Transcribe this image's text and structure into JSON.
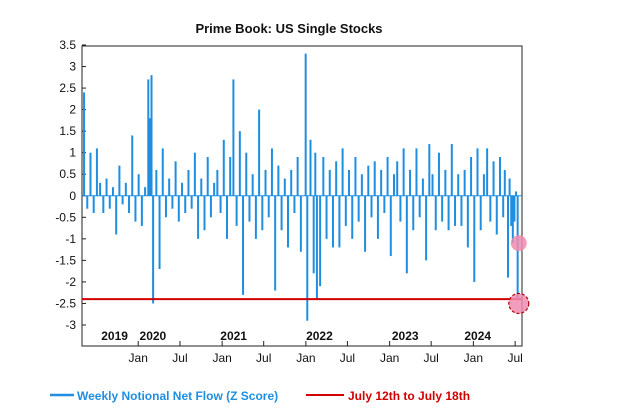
{
  "chart_data": {
    "type": "bar",
    "title": "Prime Book: US Single Stocks",
    "xlabel": "",
    "ylabel": "",
    "ylim": [
      -3.3,
      3.5
    ],
    "y_ticks": [
      "3.5",
      "3",
      "2.5",
      "2",
      "1.5",
      "1",
      "0.5",
      "0",
      "-0.5",
      "-1",
      "-1.5",
      "-2",
      "-2.5",
      "-3"
    ],
    "x_range": [
      "2019-05-01",
      "2024-07-31"
    ],
    "month_ticks": [
      {
        "date": "2020-01-01",
        "label": "Jan"
      },
      {
        "date": "2020-07-01",
        "label": "Jul"
      },
      {
        "date": "2021-01-01",
        "label": "Jan"
      },
      {
        "date": "2021-07-01",
        "label": "Jul"
      },
      {
        "date": "2022-01-01",
        "label": "Jan"
      },
      {
        "date": "2022-07-01",
        "label": "Jul"
      },
      {
        "date": "2023-01-01",
        "label": "Jan"
      },
      {
        "date": "2023-07-01",
        "label": "Jul"
      },
      {
        "date": "2024-01-01",
        "label": "Jan"
      },
      {
        "date": "2024-07-01",
        "label": "Jul"
      }
    ],
    "year_labels": [
      {
        "date": "2019-09-20",
        "label": "2019"
      },
      {
        "date": "2020-03-05",
        "label": "2020"
      },
      {
        "date": "2021-02-20",
        "label": "2021"
      },
      {
        "date": "2022-03-01",
        "label": "2022"
      },
      {
        "date": "2023-03-10",
        "label": "2023"
      },
      {
        "date": "2024-01-20",
        "label": "2024"
      }
    ],
    "series": [
      {
        "name": "Weekly Notional Net Flow (Z Score)",
        "color": "#1f8ee0",
        "points": [
          [
            "2019-05-10",
            2.4
          ],
          [
            "2019-05-24",
            -0.3
          ],
          [
            "2019-06-07",
            1.0
          ],
          [
            "2019-06-21",
            -0.4
          ],
          [
            "2019-07-05",
            1.1
          ],
          [
            "2019-07-19",
            0.3
          ],
          [
            "2019-08-02",
            -0.4
          ],
          [
            "2019-08-16",
            0.4
          ],
          [
            "2019-08-30",
            -0.3
          ],
          [
            "2019-09-13",
            0.2
          ],
          [
            "2019-09-27",
            -0.9
          ],
          [
            "2019-10-11",
            0.7
          ],
          [
            "2019-10-25",
            -0.2
          ],
          [
            "2019-11-08",
            0.3
          ],
          [
            "2019-11-22",
            -0.4
          ],
          [
            "2019-12-06",
            1.4
          ],
          [
            "2019-12-20",
            -0.6
          ],
          [
            "2020-01-03",
            0.5
          ],
          [
            "2020-01-17",
            -0.7
          ],
          [
            "2020-01-31",
            0.2
          ],
          [
            "2020-02-14",
            2.7
          ],
          [
            "2020-02-21",
            1.8
          ],
          [
            "2020-02-28",
            2.8
          ],
          [
            "2020-03-06",
            -2.5
          ],
          [
            "2020-03-20",
            0.6
          ],
          [
            "2020-04-03",
            -1.7
          ],
          [
            "2020-04-17",
            1.1
          ],
          [
            "2020-05-01",
            -0.5
          ],
          [
            "2020-05-15",
            0.4
          ],
          [
            "2020-05-29",
            -0.3
          ],
          [
            "2020-06-12",
            0.8
          ],
          [
            "2020-06-26",
            -0.6
          ],
          [
            "2020-07-10",
            0.3
          ],
          [
            "2020-07-24",
            -0.4
          ],
          [
            "2020-08-07",
            0.6
          ],
          [
            "2020-08-21",
            -0.3
          ],
          [
            "2020-09-04",
            1.0
          ],
          [
            "2020-09-18",
            -1.0
          ],
          [
            "2020-10-02",
            0.4
          ],
          [
            "2020-10-16",
            -0.8
          ],
          [
            "2020-10-30",
            0.9
          ],
          [
            "2020-11-13",
            -0.5
          ],
          [
            "2020-11-27",
            0.3
          ],
          [
            "2020-12-11",
            0.6
          ],
          [
            "2020-12-25",
            -0.4
          ],
          [
            "2021-01-08",
            1.3
          ],
          [
            "2021-01-22",
            -1.0
          ],
          [
            "2021-02-05",
            0.9
          ],
          [
            "2021-02-19",
            2.7
          ],
          [
            "2021-03-05",
            -0.7
          ],
          [
            "2021-03-19",
            1.5
          ],
          [
            "2021-04-02",
            -2.3
          ],
          [
            "2021-04-16",
            1.0
          ],
          [
            "2021-04-30",
            -0.6
          ],
          [
            "2021-05-14",
            0.5
          ],
          [
            "2021-05-28",
            -1.0
          ],
          [
            "2021-06-11",
            2.0
          ],
          [
            "2021-06-25",
            -0.8
          ],
          [
            "2021-07-09",
            0.6
          ],
          [
            "2021-07-23",
            -0.5
          ],
          [
            "2021-08-06",
            1.1
          ],
          [
            "2021-08-20",
            -2.2
          ],
          [
            "2021-09-03",
            0.7
          ],
          [
            "2021-09-17",
            -0.8
          ],
          [
            "2021-10-01",
            0.4
          ],
          [
            "2021-10-15",
            -1.2
          ],
          [
            "2021-10-29",
            0.6
          ],
          [
            "2021-11-12",
            -0.4
          ],
          [
            "2021-11-26",
            0.9
          ],
          [
            "2021-12-10",
            -1.3
          ],
          [
            "2021-12-31",
            3.3
          ],
          [
            "2022-01-07",
            -2.9
          ],
          [
            "2022-01-21",
            1.3
          ],
          [
            "2022-02-04",
            -1.8
          ],
          [
            "2022-02-11",
            1.0
          ],
          [
            "2022-02-18",
            -2.4
          ],
          [
            "2022-03-04",
            -2.1
          ],
          [
            "2022-03-18",
            0.9
          ],
          [
            "2022-04-01",
            -1.0
          ],
          [
            "2022-04-15",
            0.6
          ],
          [
            "2022-04-29",
            -1.2
          ],
          [
            "2022-05-13",
            0.8
          ],
          [
            "2022-05-27",
            -1.2
          ],
          [
            "2022-06-10",
            1.1
          ],
          [
            "2022-06-24",
            -0.7
          ],
          [
            "2022-07-08",
            0.6
          ],
          [
            "2022-07-22",
            -1.0
          ],
          [
            "2022-08-05",
            0.9
          ],
          [
            "2022-08-19",
            -0.6
          ],
          [
            "2022-09-02",
            0.5
          ],
          [
            "2022-09-16",
            -1.3
          ],
          [
            "2022-09-30",
            0.7
          ],
          [
            "2022-10-14",
            -0.5
          ],
          [
            "2022-10-28",
            0.8
          ],
          [
            "2022-11-11",
            -1.0
          ],
          [
            "2022-11-25",
            0.6
          ],
          [
            "2022-12-09",
            -0.4
          ],
          [
            "2022-12-23",
            0.9
          ],
          [
            "2023-01-06",
            -1.4
          ],
          [
            "2023-01-20",
            0.5
          ],
          [
            "2023-02-03",
            0.8
          ],
          [
            "2023-02-17",
            -0.6
          ],
          [
            "2023-03-03",
            1.1
          ],
          [
            "2023-03-17",
            -1.8
          ],
          [
            "2023-03-31",
            0.6
          ],
          [
            "2023-04-14",
            -0.8
          ],
          [
            "2023-04-28",
            1.1
          ],
          [
            "2023-05-12",
            -0.5
          ],
          [
            "2023-05-26",
            0.4
          ],
          [
            "2023-06-09",
            -1.5
          ],
          [
            "2023-06-23",
            1.2
          ],
          [
            "2023-07-07",
            0.5
          ],
          [
            "2023-07-21",
            -0.8
          ],
          [
            "2023-08-04",
            1.0
          ],
          [
            "2023-08-18",
            -0.6
          ],
          [
            "2023-09-01",
            0.6
          ],
          [
            "2023-09-15",
            -0.8
          ],
          [
            "2023-09-29",
            1.2
          ],
          [
            "2023-10-13",
            -0.7
          ],
          [
            "2023-10-27",
            0.5
          ],
          [
            "2023-11-10",
            -0.7
          ],
          [
            "2023-11-24",
            0.6
          ],
          [
            "2023-12-08",
            -1.2
          ],
          [
            "2023-12-22",
            0.9
          ],
          [
            "2024-01-05",
            -2.0
          ],
          [
            "2024-01-19",
            1.1
          ],
          [
            "2024-02-02",
            -0.8
          ],
          [
            "2024-02-16",
            0.5
          ],
          [
            "2024-03-01",
            1.1
          ],
          [
            "2024-03-15",
            -0.6
          ],
          [
            "2024-03-29",
            0.8
          ],
          [
            "2024-04-12",
            -0.9
          ],
          [
            "2024-04-26",
            0.9
          ],
          [
            "2024-05-10",
            -0.5
          ],
          [
            "2024-05-17",
            0.6
          ],
          [
            "2024-05-31",
            -1.9
          ],
          [
            "2024-06-07",
            0.4
          ],
          [
            "2024-06-14",
            -0.7
          ],
          [
            "2024-06-21",
            -1.1
          ],
          [
            "2024-06-28",
            -0.6
          ],
          [
            "2024-07-05",
            0.1
          ],
          [
            "2024-07-12",
            -2.4
          ]
        ]
      },
      {
        "name": "July 12th to July 18th",
        "color": "#d00000",
        "type": "hline",
        "value": -2.4
      }
    ],
    "annotations": [
      {
        "date": "2024-07-17",
        "value": -1.1,
        "color": "#f08cb0",
        "style": "filled-circle"
      },
      {
        "date": "2024-07-17",
        "value": -2.5,
        "color": "#f08cb0",
        "style": "dashed-circle"
      }
    ],
    "legend": {
      "position": "bottom"
    }
  }
}
